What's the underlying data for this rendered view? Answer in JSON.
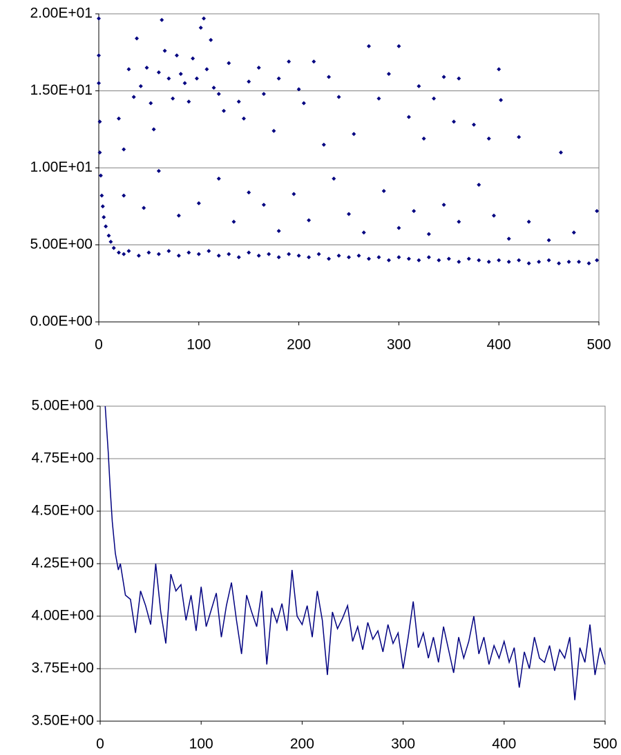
{
  "chart_data": [
    {
      "type": "scatter",
      "color": "#000080",
      "grid": true,
      "x": [
        0,
        0,
        0,
        1,
        1,
        2,
        3,
        4,
        5,
        7,
        10,
        12,
        15,
        20,
        25,
        30,
        40,
        50,
        60,
        70,
        80,
        90,
        100,
        110,
        120,
        130,
        140,
        150,
        160,
        170,
        180,
        190,
        200,
        210,
        220,
        230,
        240,
        250,
        260,
        270,
        280,
        290,
        300,
        310,
        320,
        330,
        340,
        350,
        360,
        370,
        380,
        390,
        400,
        410,
        420,
        430,
        440,
        450,
        460,
        470,
        480,
        490,
        498,
        20,
        25,
        30,
        35,
        38,
        42,
        48,
        52,
        55,
        60,
        63,
        66,
        70,
        74,
        78,
        82,
        86,
        90,
        94,
        98,
        102,
        105,
        108,
        112,
        115,
        120,
        125,
        130,
        140,
        145,
        150,
        160,
        165,
        175,
        180,
        190,
        200,
        205,
        215,
        225,
        230,
        240,
        255,
        270,
        280,
        290,
        300,
        310,
        320,
        325,
        335,
        345,
        355,
        360,
        375,
        390,
        400,
        402,
        420,
        462,
        25,
        45,
        60,
        80,
        100,
        120,
        135,
        150,
        165,
        180,
        195,
        210,
        235,
        250,
        265,
        285,
        300,
        315,
        330,
        345,
        360,
        380,
        395,
        410,
        430,
        450,
        475,
        498
      ],
      "values": [
        19.7,
        17.3,
        15.5,
        13,
        11,
        9.5,
        8.2,
        7.5,
        6.8,
        6.2,
        5.6,
        5.2,
        4.8,
        4.5,
        4.4,
        4.6,
        4.3,
        4.5,
        4.4,
        4.6,
        4.3,
        4.5,
        4.4,
        4.6,
        4.3,
        4.4,
        4.2,
        4.5,
        4.3,
        4.4,
        4.2,
        4.4,
        4.3,
        4.2,
        4.4,
        4.1,
        4.3,
        4.2,
        4.3,
        4.1,
        4.2,
        4.0,
        4.2,
        4.1,
        4.0,
        4.2,
        4.0,
        4.1,
        3.9,
        4.1,
        4.0,
        3.9,
        4.0,
        3.9,
        4.0,
        3.8,
        3.9,
        4.0,
        3.8,
        3.9,
        3.9,
        3.8,
        4.0,
        13.2,
        11.2,
        16.4,
        14.6,
        18.4,
        15.3,
        16.5,
        14.2,
        12.5,
        16.2,
        19.6,
        17.6,
        15.8,
        14.5,
        17.3,
        16.1,
        15.5,
        14.3,
        17.1,
        15.8,
        19.1,
        19.7,
        16.4,
        18.3,
        15.2,
        14.8,
        13.7,
        16.8,
        14.3,
        13.2,
        15.6,
        16.5,
        14.8,
        12.4,
        15.8,
        16.9,
        15.1,
        14.2,
        16.9,
        11.5,
        15.9,
        14.6,
        12.2,
        17.9,
        14.5,
        16.1,
        17.9,
        13.3,
        15.3,
        11.9,
        14.5,
        15.9,
        13.0,
        15.8,
        12.8,
        11.9,
        16.4,
        14.4,
        12.0,
        11.0,
        8.2,
        7.4,
        9.8,
        6.9,
        7.7,
        9.3,
        6.5,
        8.4,
        7.6,
        5.9,
        8.3,
        6.6,
        9.3,
        7.0,
        5.8,
        8.5,
        6.1,
        7.2,
        5.7,
        7.6,
        6.5,
        8.9,
        6.9,
        5.4,
        6.5,
        5.3,
        5.8,
        7.2
      ],
      "xlim": [
        0,
        500
      ],
      "xticks": [
        0,
        100,
        200,
        300,
        400,
        500
      ],
      "ylim": [
        0,
        20
      ],
      "yticks": [
        {
          "value": 0,
          "label": "0.00E+00"
        },
        {
          "value": 5,
          "label": "5.00E+00"
        },
        {
          "value": 10,
          "label": "1.00E+01"
        },
        {
          "value": 15,
          "label": "1.50E+01"
        },
        {
          "value": 20,
          "label": "2.00E+01"
        }
      ]
    },
    {
      "type": "line",
      "color": "#000080",
      "grid": true,
      "x": [
        5,
        8,
        10,
        12,
        15,
        18,
        20,
        25,
        30,
        35,
        40,
        45,
        50,
        55,
        60,
        65,
        70,
        75,
        80,
        85,
        90,
        95,
        100,
        105,
        110,
        115,
        120,
        125,
        130,
        135,
        140,
        145,
        150,
        155,
        160,
        165,
        170,
        175,
        180,
        185,
        190,
        195,
        200,
        205,
        210,
        215,
        220,
        225,
        230,
        235,
        240,
        245,
        250,
        255,
        260,
        265,
        270,
        275,
        280,
        285,
        290,
        295,
        300,
        305,
        310,
        315,
        320,
        325,
        330,
        335,
        340,
        345,
        350,
        355,
        360,
        365,
        370,
        375,
        380,
        385,
        390,
        395,
        400,
        405,
        410,
        415,
        420,
        425,
        430,
        435,
        440,
        445,
        450,
        455,
        460,
        465,
        470,
        475,
        480,
        485,
        490,
        495,
        500
      ],
      "values": [
        5.0,
        4.78,
        4.6,
        4.45,
        4.3,
        4.22,
        4.25,
        4.1,
        4.08,
        3.92,
        4.12,
        4.05,
        3.96,
        4.25,
        4.02,
        3.87,
        4.2,
        4.12,
        4.15,
        3.98,
        4.1,
        3.93,
        4.14,
        3.95,
        4.03,
        4.11,
        3.9,
        4.05,
        4.16,
        3.98,
        3.82,
        4.1,
        4.02,
        3.95,
        4.12,
        3.77,
        4.04,
        3.97,
        4.06,
        3.93,
        4.22,
        4.0,
        3.96,
        4.05,
        3.9,
        4.12,
        3.98,
        3.72,
        4.02,
        3.94,
        3.99,
        4.05,
        3.88,
        3.95,
        3.84,
        3.97,
        3.89,
        3.93,
        3.83,
        3.96,
        3.87,
        3.92,
        3.75,
        3.9,
        4.07,
        3.85,
        3.92,
        3.8,
        3.9,
        3.78,
        3.95,
        3.84,
        3.73,
        3.9,
        3.8,
        3.88,
        4.0,
        3.82,
        3.9,
        3.77,
        3.86,
        3.8,
        3.88,
        3.78,
        3.85,
        3.66,
        3.83,
        3.75,
        3.9,
        3.8,
        3.78,
        3.86,
        3.74,
        3.84,
        3.8,
        3.9,
        3.6,
        3.85,
        3.78,
        3.96,
        3.72,
        3.85,
        3.77
      ],
      "xlim": [
        0,
        500
      ],
      "xticks": [
        0,
        100,
        200,
        300,
        400,
        500
      ],
      "ylim": [
        3.5,
        5
      ],
      "yticks": [
        {
          "value": 3.5,
          "label": "3.50E+00"
        },
        {
          "value": 3.75,
          "label": "3.75E+00"
        },
        {
          "value": 4,
          "label": "4.00E+00"
        },
        {
          "value": 4.25,
          "label": "4.25E+00"
        },
        {
          "value": 4.5,
          "label": "4.50E+00"
        },
        {
          "value": 4.75,
          "label": "4.75E+00"
        },
        {
          "value": 5,
          "label": "5.00E+00"
        }
      ]
    }
  ]
}
